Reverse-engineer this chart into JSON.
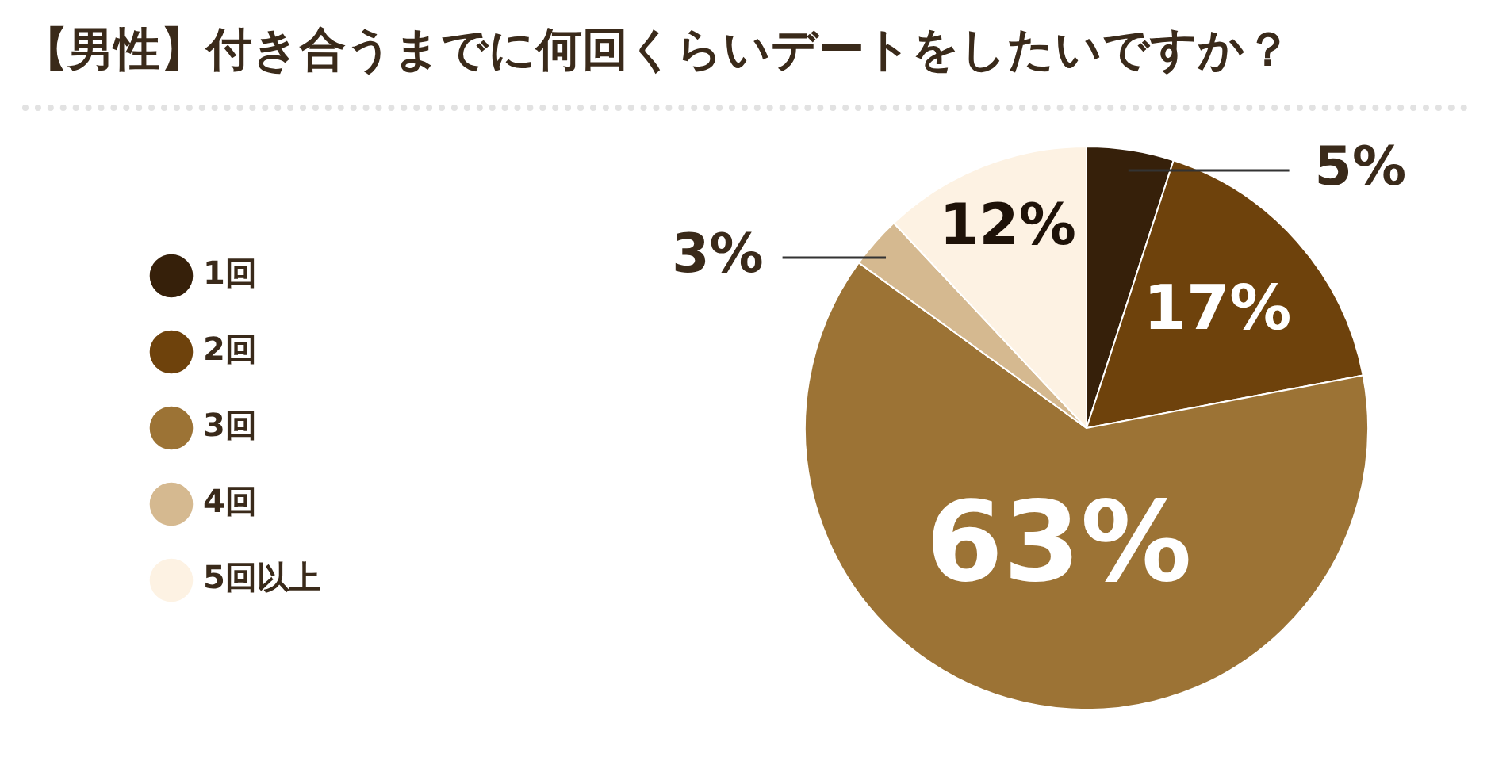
{
  "chart_data": {
    "type": "pie",
    "title": "【男性】付き合うまでに何回くらいデートをしたいですか？",
    "categories": [
      "1回",
      "2回",
      "3回",
      "4回",
      "5回以上"
    ],
    "values": [
      5,
      17,
      63,
      3,
      12
    ],
    "colors": [
      "#36200a",
      "#6e420c",
      "#9c7335",
      "#d5b990",
      "#fdf2e3"
    ],
    "value_labels": [
      "5%",
      "17%",
      "63%",
      "3%",
      "12%"
    ],
    "legend": "left"
  }
}
